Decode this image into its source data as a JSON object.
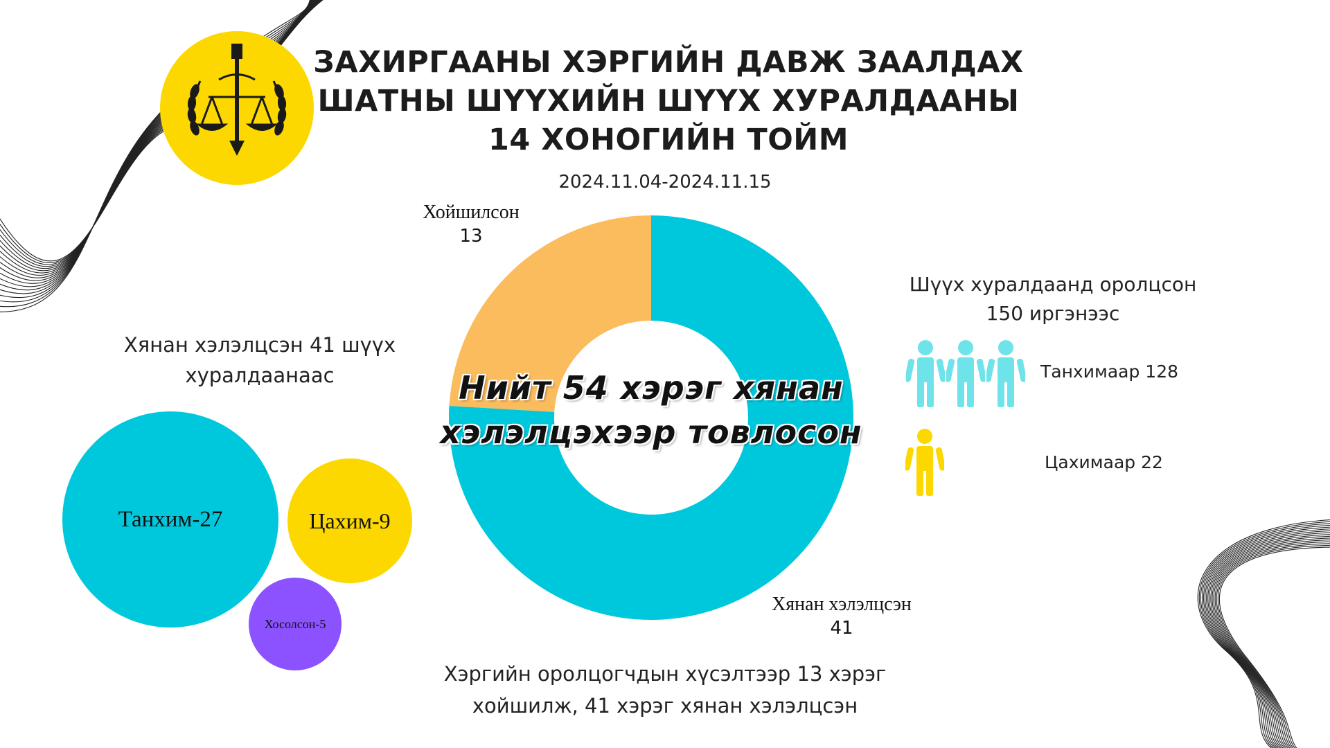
{
  "title": {
    "line1": "ЗАХИРГААНЫ ХЭРГИЙН ДАВЖ ЗААЛДАХ",
    "line2": "ШАТНЫ ШҮҮХИЙН ШҮҮХ ХУРАЛДААНЫ",
    "line3": "14 ХОНОГИЙН ТОЙМ"
  },
  "date_range": "2024.11.04-2024.11.15",
  "chart_data": [
    {
      "type": "pie",
      "categories": [
        "Хойшилсон",
        "Хянан хэлэлцсэн"
      ],
      "values": [
        13,
        41
      ],
      "colors": [
        "#fbbc5e",
        "#00c8dc"
      ],
      "center_text_line1": "Нийт 54 хэрэг хянан",
      "center_text_line2": "хэлэлцэхээр товлосон",
      "labels": [
        {
          "name": "Хойшилсон",
          "value": "13"
        },
        {
          "name": "Хянан хэлэлцсэн",
          "value": "41"
        }
      ]
    },
    {
      "type": "bubble",
      "categories": [
        "Танхим",
        "Цахим",
        "Хосолсон"
      ],
      "values": [
        27,
        9,
        5
      ],
      "labels": [
        "Танхим-27",
        "Цахим-9",
        "Хосолсон-5"
      ],
      "colors": [
        "#00c8dc",
        "#fcd800",
        "#8c52ff"
      ]
    }
  ],
  "left_caption": {
    "line1": "Хянан хэлэлцсэн 41 шүүх",
    "line2": "хуралдаанаас"
  },
  "participants": {
    "caption_line1": "Шүүх хуралдаанд оролцсон",
    "caption_line2": "150 иргэнээс",
    "in_person_label": "Танхимаар 128",
    "online_label": "Цахимаар 22",
    "in_person_color": "#6fe3ea",
    "online_color": "#fcd800",
    "in_person_icon": "person-icon",
    "online_icon": "person-icon"
  },
  "bottom_caption": {
    "line1": "Хэргийн оролцогчдын хүсэлтээр 13 хэрэг",
    "line2": "хойшилж, 41 хэрэг хянан хэлэлцсэн"
  },
  "emblem": {
    "icon": "court-emblem-icon",
    "color": "#fcd800"
  }
}
